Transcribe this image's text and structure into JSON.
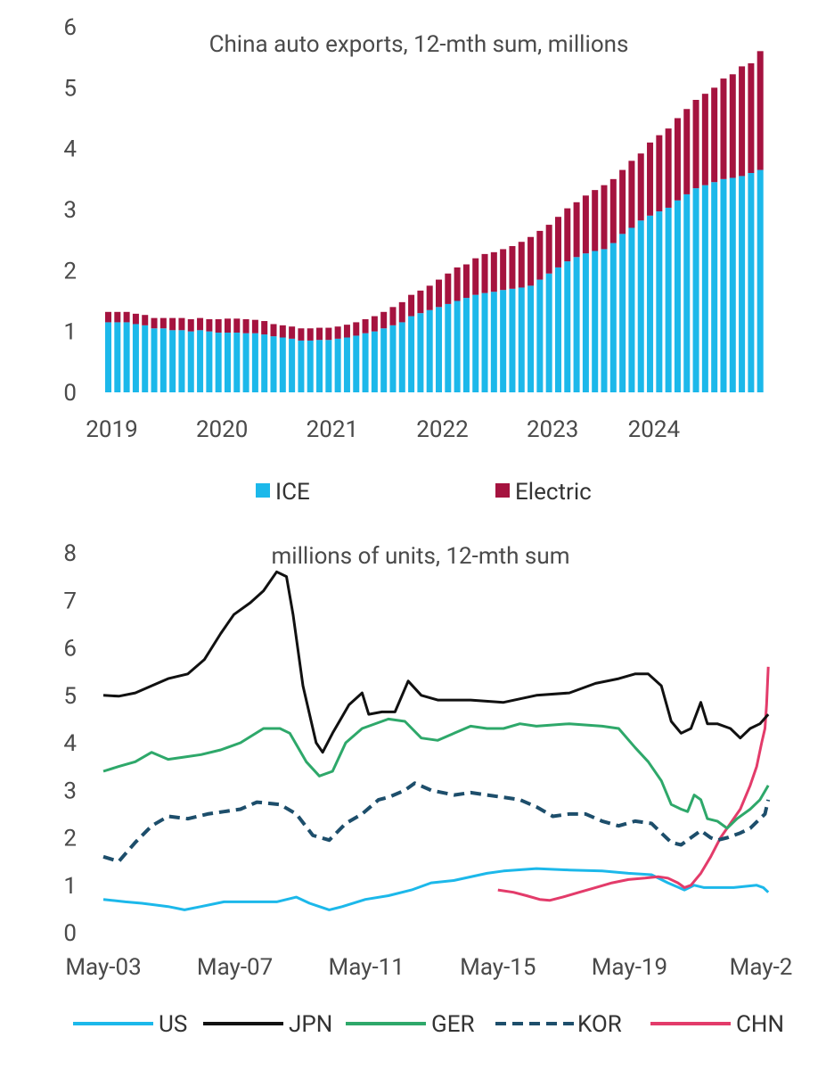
{
  "chart_data": [
    {
      "type": "bar",
      "stacked": true,
      "title": "China auto exports, 12-mth sum, millions",
      "x_tick_labels": [
        "2019",
        "2020",
        "2021",
        "2022",
        "2023",
        "2024"
      ],
      "y_tick_labels": [
        "0",
        "1",
        "2",
        "3",
        "4",
        "5",
        "6"
      ],
      "ylim": [
        0,
        6
      ],
      "legend_position": "bottom",
      "grid": false,
      "categories_note": "monthly, Jan 2019 - Apr 2024",
      "series": [
        {
          "name": "ICE",
          "color": "#1cb8ea",
          "values": [
            1.15,
            1.15,
            1.15,
            1.12,
            1.1,
            1.05,
            1.05,
            1.02,
            1.02,
            1.0,
            1.02,
            1.0,
            0.98,
            0.98,
            0.98,
            0.97,
            0.97,
            0.95,
            0.92,
            0.9,
            0.88,
            0.85,
            0.85,
            0.86,
            0.86,
            0.88,
            0.9,
            0.93,
            0.97,
            1.0,
            1.05,
            1.1,
            1.15,
            1.25,
            1.3,
            1.35,
            1.4,
            1.45,
            1.5,
            1.55,
            1.6,
            1.63,
            1.65,
            1.68,
            1.7,
            1.72,
            1.75,
            1.85,
            1.95,
            2.05,
            2.15,
            2.22,
            2.28,
            2.32,
            2.35,
            2.45,
            2.6,
            2.7,
            2.82,
            2.9,
            2.97,
            3.03,
            3.15,
            3.25,
            3.35,
            3.4,
            3.45,
            3.5,
            3.52,
            3.55,
            3.6,
            3.65
          ]
        },
        {
          "name": "Electric",
          "color": "#a5133f",
          "values": [
            0.17,
            0.17,
            0.17,
            0.17,
            0.17,
            0.17,
            0.17,
            0.2,
            0.2,
            0.2,
            0.2,
            0.2,
            0.22,
            0.23,
            0.23,
            0.23,
            0.22,
            0.22,
            0.2,
            0.2,
            0.2,
            0.2,
            0.2,
            0.2,
            0.2,
            0.2,
            0.21,
            0.22,
            0.23,
            0.25,
            0.27,
            0.3,
            0.33,
            0.35,
            0.37,
            0.4,
            0.45,
            0.5,
            0.55,
            0.55,
            0.6,
            0.64,
            0.65,
            0.67,
            0.7,
            0.75,
            0.8,
            0.8,
            0.8,
            0.83,
            0.87,
            0.9,
            0.95,
            1.0,
            1.05,
            1.05,
            1.05,
            1.1,
            1.1,
            1.2,
            1.25,
            1.3,
            1.35,
            1.4,
            1.45,
            1.5,
            1.55,
            1.65,
            1.7,
            1.8,
            1.8,
            1.95
          ]
        }
      ]
    },
    {
      "type": "line",
      "title": "millions of units, 12-mth sum",
      "x_tick_labels": [
        "May-03",
        "May-07",
        "May-11",
        "May-15",
        "May-19",
        "May-2"
      ],
      "y_tick_labels": [
        "0",
        "1",
        "2",
        "3",
        "4",
        "5",
        "6",
        "7",
        "8"
      ],
      "ylim": [
        0,
        8
      ],
      "xlim": [
        2003.33,
        2023.6
      ],
      "legend_position": "bottom",
      "grid": false,
      "series": [
        {
          "name": "US",
          "color": "#1cb8ea",
          "dash": "solid",
          "points": [
            [
              2003.33,
              0.7
            ],
            [
              2004.0,
              0.65
            ],
            [
              2004.5,
              0.62
            ],
            [
              2005.3,
              0.55
            ],
            [
              2005.8,
              0.48
            ],
            [
              2006.3,
              0.55
            ],
            [
              2007.0,
              0.65
            ],
            [
              2008.0,
              0.65
            ],
            [
              2008.6,
              0.65
            ],
            [
              2009.2,
              0.75
            ],
            [
              2009.6,
              0.62
            ],
            [
              2010.2,
              0.48
            ],
            [
              2010.6,
              0.55
            ],
            [
              2011.3,
              0.7
            ],
            [
              2012.0,
              0.78
            ],
            [
              2012.7,
              0.9
            ],
            [
              2013.3,
              1.05
            ],
            [
              2014.0,
              1.1
            ],
            [
              2015.0,
              1.25
            ],
            [
              2015.5,
              1.3
            ],
            [
              2016.5,
              1.35
            ],
            [
              2017.5,
              1.32
            ],
            [
              2018.5,
              1.3
            ],
            [
              2019.3,
              1.25
            ],
            [
              2020.0,
              1.22
            ],
            [
              2020.5,
              1.05
            ],
            [
              2021.0,
              0.9
            ],
            [
              2021.3,
              1.0
            ],
            [
              2021.6,
              0.95
            ],
            [
              2022.5,
              0.95
            ],
            [
              2023.2,
              1.0
            ],
            [
              2023.4,
              0.95
            ],
            [
              2023.55,
              0.85
            ]
          ]
        },
        {
          "name": "JPN",
          "color": "#111111",
          "dash": "solid",
          "points": [
            [
              2003.33,
              5.0
            ],
            [
              2003.8,
              4.98
            ],
            [
              2004.3,
              5.05
            ],
            [
              2004.8,
              5.2
            ],
            [
              2005.3,
              5.35
            ],
            [
              2005.9,
              5.45
            ],
            [
              2006.4,
              5.75
            ],
            [
              2006.9,
              6.3
            ],
            [
              2007.3,
              6.7
            ],
            [
              2007.8,
              6.95
            ],
            [
              2008.2,
              7.2
            ],
            [
              2008.6,
              7.6
            ],
            [
              2008.9,
              7.5
            ],
            [
              2009.1,
              6.7
            ],
            [
              2009.4,
              5.2
            ],
            [
              2009.8,
              4.0
            ],
            [
              2010.0,
              3.8
            ],
            [
              2010.3,
              4.2
            ],
            [
              2010.8,
              4.8
            ],
            [
              2011.2,
              5.05
            ],
            [
              2011.4,
              4.6
            ],
            [
              2011.8,
              4.65
            ],
            [
              2012.2,
              4.65
            ],
            [
              2012.6,
              5.3
            ],
            [
              2013.0,
              5.0
            ],
            [
              2013.5,
              4.9
            ],
            [
              2014.5,
              4.9
            ],
            [
              2015.5,
              4.85
            ],
            [
              2016.5,
              5.0
            ],
            [
              2017.5,
              5.05
            ],
            [
              2018.3,
              5.25
            ],
            [
              2019.0,
              5.35
            ],
            [
              2019.5,
              5.45
            ],
            [
              2019.9,
              5.45
            ],
            [
              2020.3,
              5.2
            ],
            [
              2020.6,
              4.45
            ],
            [
              2020.9,
              4.2
            ],
            [
              2021.2,
              4.3
            ],
            [
              2021.5,
              4.85
            ],
            [
              2021.7,
              4.4
            ],
            [
              2022.0,
              4.4
            ],
            [
              2022.4,
              4.3
            ],
            [
              2022.7,
              4.1
            ],
            [
              2023.0,
              4.3
            ],
            [
              2023.3,
              4.4
            ],
            [
              2023.55,
              4.6
            ]
          ]
        },
        {
          "name": "GER",
          "color": "#2ea86a",
          "dash": "solid",
          "points": [
            [
              2003.33,
              3.4
            ],
            [
              2003.8,
              3.5
            ],
            [
              2004.3,
              3.6
            ],
            [
              2004.8,
              3.8
            ],
            [
              2005.3,
              3.65
            ],
            [
              2005.8,
              3.7
            ],
            [
              2006.3,
              3.75
            ],
            [
              2006.9,
              3.85
            ],
            [
              2007.5,
              4.0
            ],
            [
              2008.2,
              4.3
            ],
            [
              2008.7,
              4.3
            ],
            [
              2009.0,
              4.2
            ],
            [
              2009.5,
              3.6
            ],
            [
              2009.9,
              3.3
            ],
            [
              2010.3,
              3.4
            ],
            [
              2010.7,
              4.0
            ],
            [
              2011.2,
              4.3
            ],
            [
              2012.0,
              4.5
            ],
            [
              2012.5,
              4.45
            ],
            [
              2013.0,
              4.1
            ],
            [
              2013.5,
              4.05
            ],
            [
              2014.0,
              4.2
            ],
            [
              2014.5,
              4.35
            ],
            [
              2015.0,
              4.3
            ],
            [
              2015.5,
              4.3
            ],
            [
              2016.0,
              4.4
            ],
            [
              2016.5,
              4.35
            ],
            [
              2017.5,
              4.4
            ],
            [
              2018.5,
              4.35
            ],
            [
              2019.0,
              4.3
            ],
            [
              2019.5,
              3.9
            ],
            [
              2019.9,
              3.6
            ],
            [
              2020.3,
              3.2
            ],
            [
              2020.6,
              2.7
            ],
            [
              2020.9,
              2.6
            ],
            [
              2021.1,
              2.55
            ],
            [
              2021.3,
              2.9
            ],
            [
              2021.5,
              2.8
            ],
            [
              2021.7,
              2.4
            ],
            [
              2022.0,
              2.35
            ],
            [
              2022.3,
              2.2
            ],
            [
              2022.6,
              2.4
            ],
            [
              2023.0,
              2.6
            ],
            [
              2023.3,
              2.8
            ],
            [
              2023.55,
              3.1
            ]
          ]
        },
        {
          "name": "KOR",
          "color": "#1d4e6b",
          "dash": "dashed",
          "points": [
            [
              2003.33,
              1.6
            ],
            [
              2003.8,
              1.5
            ],
            [
              2004.3,
              1.9
            ],
            [
              2004.8,
              2.25
            ],
            [
              2005.3,
              2.45
            ],
            [
              2005.9,
              2.4
            ],
            [
              2006.5,
              2.5
            ],
            [
              2007.0,
              2.55
            ],
            [
              2007.5,
              2.6
            ],
            [
              2008.0,
              2.75
            ],
            [
              2008.7,
              2.7
            ],
            [
              2009.2,
              2.5
            ],
            [
              2009.7,
              2.05
            ],
            [
              2010.2,
              1.95
            ],
            [
              2010.7,
              2.3
            ],
            [
              2011.2,
              2.5
            ],
            [
              2011.7,
              2.8
            ],
            [
              2012.0,
              2.85
            ],
            [
              2012.5,
              3.0
            ],
            [
              2012.8,
              3.15
            ],
            [
              2013.3,
              3.0
            ],
            [
              2014.0,
              2.9
            ],
            [
              2014.5,
              2.95
            ],
            [
              2015.0,
              2.9
            ],
            [
              2015.5,
              2.85
            ],
            [
              2016.0,
              2.8
            ],
            [
              2016.5,
              2.65
            ],
            [
              2017.0,
              2.45
            ],
            [
              2017.5,
              2.5
            ],
            [
              2018.0,
              2.5
            ],
            [
              2018.5,
              2.35
            ],
            [
              2019.0,
              2.25
            ],
            [
              2019.5,
              2.35
            ],
            [
              2020.0,
              2.3
            ],
            [
              2020.3,
              2.1
            ],
            [
              2020.6,
              1.9
            ],
            [
              2020.9,
              1.85
            ],
            [
              2021.2,
              2.0
            ],
            [
              2021.5,
              2.15
            ],
            [
              2021.8,
              2.0
            ],
            [
              2022.0,
              1.95
            ],
            [
              2022.3,
              2.0
            ],
            [
              2022.7,
              2.1
            ],
            [
              2023.0,
              2.2
            ],
            [
              2023.3,
              2.4
            ],
            [
              2023.45,
              2.5
            ],
            [
              2023.55,
              2.8
            ]
          ]
        },
        {
          "name": "CHN",
          "color": "#e33b6a",
          "dash": "solid",
          "points": [
            [
              2015.33,
              0.9
            ],
            [
              2015.8,
              0.85
            ],
            [
              2016.2,
              0.78
            ],
            [
              2016.6,
              0.7
            ],
            [
              2016.9,
              0.68
            ],
            [
              2017.3,
              0.75
            ],
            [
              2017.8,
              0.85
            ],
            [
              2018.3,
              0.95
            ],
            [
              2018.8,
              1.05
            ],
            [
              2019.3,
              1.12
            ],
            [
              2019.8,
              1.15
            ],
            [
              2020.2,
              1.18
            ],
            [
              2020.5,
              1.15
            ],
            [
              2020.8,
              1.05
            ],
            [
              2021.0,
              0.95
            ],
            [
              2021.2,
              1.0
            ],
            [
              2021.5,
              1.25
            ],
            [
              2021.8,
              1.6
            ],
            [
              2022.1,
              2.0
            ],
            [
              2022.4,
              2.3
            ],
            [
              2022.7,
              2.6
            ],
            [
              2023.0,
              3.1
            ],
            [
              2023.2,
              3.5
            ],
            [
              2023.35,
              4.0
            ],
            [
              2023.45,
              4.3
            ],
            [
              2023.5,
              4.8
            ],
            [
              2023.55,
              5.6
            ]
          ]
        }
      ]
    }
  ]
}
